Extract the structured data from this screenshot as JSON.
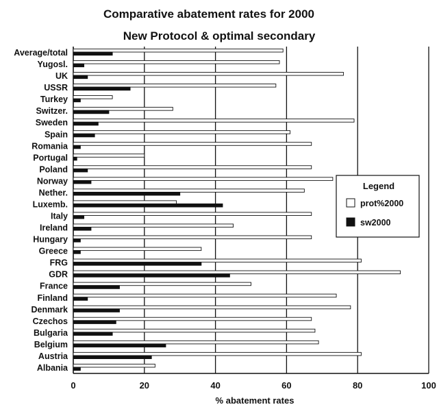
{
  "chart_data": {
    "type": "bar",
    "orientation": "horizontal",
    "title": "Comparative abatement rates for 2000",
    "subtitle": "New Protocol & optimal secondary",
    "xlabel": "% abatement rates",
    "ylabel": "",
    "xlim": [
      0,
      100
    ],
    "x_ticks": [
      "0",
      "20",
      "40",
      "60",
      "80",
      "100"
    ],
    "grid": "vertical",
    "legend_title": "Legend",
    "legend_position": "right",
    "categories": [
      "Average/total",
      "Yugosl.",
      "UK",
      "USSR",
      "Turkey",
      "Switzer.",
      "Sweden",
      "Spain",
      "Romania",
      "Portugal",
      "Poland",
      "Norway",
      "Nether.",
      "Luxemb.",
      "Italy",
      "Ireland",
      "Hungary",
      "Greece",
      "FRG",
      "GDR",
      "France",
      "Finland",
      "Denmark",
      "Czechos",
      "Bulgaria",
      "Belgium",
      "Austria",
      "Albania"
    ],
    "series": [
      {
        "name": "prot%2000",
        "color": "#ffffff",
        "values": [
          59,
          58,
          76,
          57,
          11,
          28,
          79,
          61,
          67,
          20,
          67,
          73,
          65,
          29,
          67,
          45,
          67,
          36,
          81,
          92,
          50,
          74,
          78,
          67,
          68,
          69,
          81,
          23
        ]
      },
      {
        "name": "sw2000",
        "color": "#111111",
        "values": [
          11,
          3,
          4,
          16,
          2,
          10,
          7,
          6,
          2,
          1,
          4,
          5,
          30,
          42,
          3,
          5,
          2,
          2,
          36,
          44,
          13,
          4,
          13,
          12,
          11,
          26,
          22,
          2
        ]
      }
    ]
  }
}
